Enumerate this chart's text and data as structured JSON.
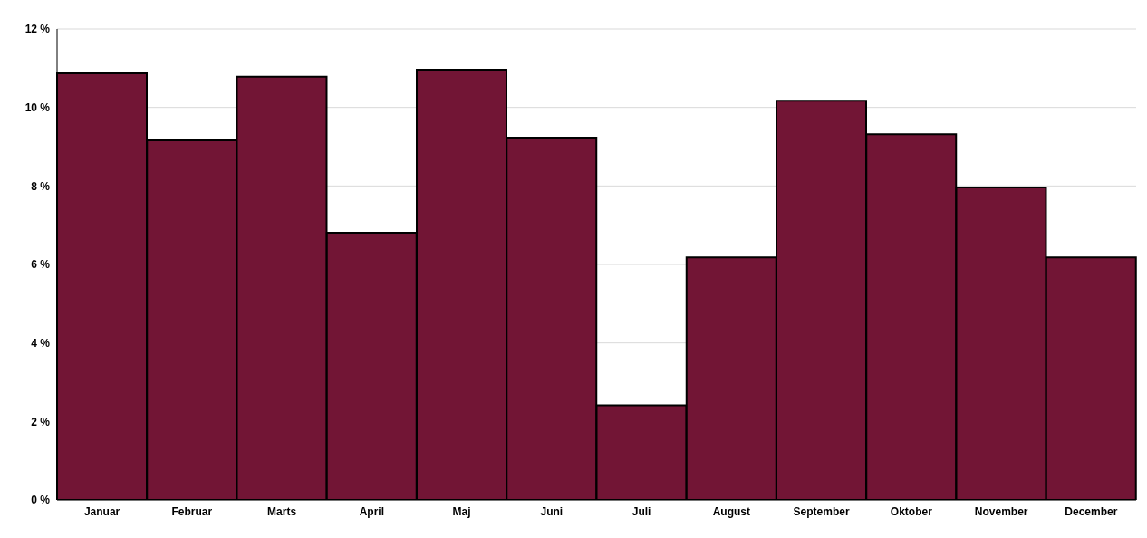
{
  "chart_data": {
    "type": "bar",
    "categories": [
      "Januar",
      "Februar",
      "Marts",
      "April",
      "Maj",
      "Juni",
      "Juli",
      "August",
      "September",
      "Oktober",
      "November",
      "December"
    ],
    "values": [
      10.87,
      9.16,
      10.78,
      6.81,
      10.96,
      9.23,
      2.41,
      6.18,
      10.17,
      9.32,
      7.96,
      6.18
    ],
    "color": "#721535",
    "ylim": [
      0,
      12
    ],
    "yticks": [
      {
        "value": 0,
        "label": "0 %"
      },
      {
        "value": 2,
        "label": "2 %"
      },
      {
        "value": 4,
        "label": "4 %"
      },
      {
        "value": 6,
        "label": "6 %"
      },
      {
        "value": 8,
        "label": "8 %"
      },
      {
        "value": 10,
        "label": "10 %"
      },
      {
        "value": 12,
        "label": "12 %"
      }
    ],
    "grid": "y",
    "legend": false
  }
}
